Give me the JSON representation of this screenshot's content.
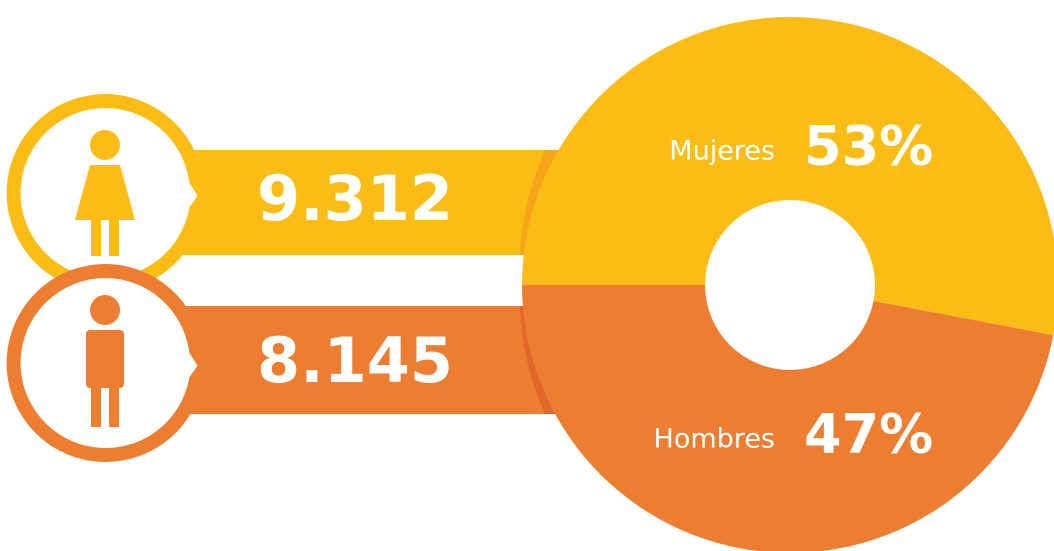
{
  "chart_data": {
    "type": "pie",
    "categories": [
      "Mujeres",
      "Hombres"
    ],
    "values": [
      53,
      47
    ],
    "value_labels": [
      "53%",
      "47%"
    ],
    "colors": [
      "#fbbd15",
      "#ec7d31"
    ],
    "counts": [
      "9.312",
      "8.145"
    ]
  }
}
